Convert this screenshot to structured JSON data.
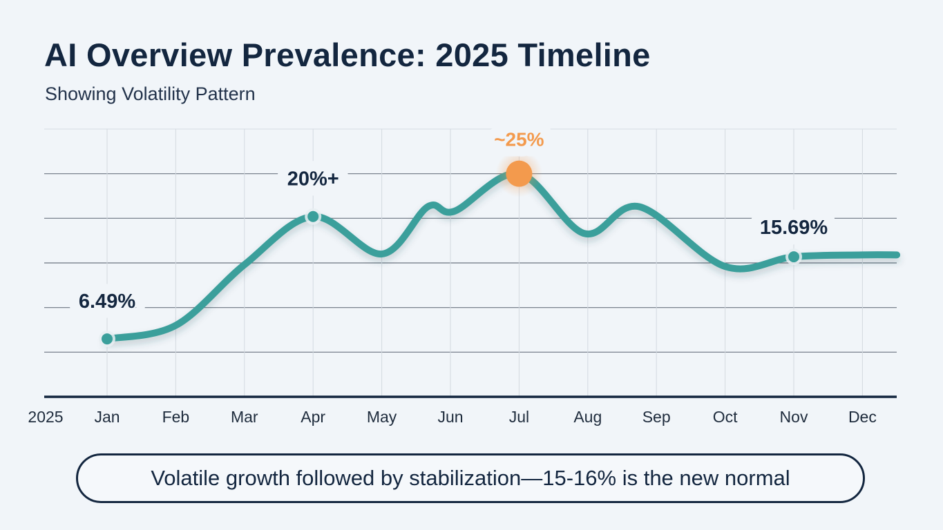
{
  "title": "AI Overview Prevalence: 2025 Timeline",
  "subtitle": "Showing Volatility Pattern",
  "callout": "Volatile growth followed by stabilization—15-16% is the new normal",
  "colors": {
    "line": "#3a9f9b",
    "peak": "#f39a4d",
    "text": "#13263f",
    "grid": "#6b7480"
  },
  "chart_data": {
    "type": "line",
    "title": "AI Overview Prevalence: 2025 Timeline",
    "subtitle": "Showing Volatility Pattern",
    "year_label": "2025",
    "categories": [
      "Jan",
      "Feb",
      "Mar",
      "Apr",
      "May",
      "Jun",
      "Jul",
      "Aug",
      "Sep",
      "Oct",
      "Nov",
      "Dec"
    ],
    "ylim": [
      0,
      30
    ],
    "y_unit": "%",
    "grid": true,
    "series": [
      {
        "x": [
          0,
          1,
          2,
          3,
          4,
          4.67,
          5.06,
          6,
          6.95,
          7.75,
          9,
          10,
          11,
          11.5
        ],
        "values": [
          6.49,
          8.0,
          14.8,
          20.2,
          16.0,
          21.3,
          20.8,
          25,
          18.3,
          21.3,
          14.6,
          15.69,
          15.9,
          15.9
        ]
      }
    ],
    "annotations": [
      {
        "month": "Jan",
        "value": 6.49,
        "label": "6.49%"
      },
      {
        "month": "Apr",
        "value": 20.2,
        "label": "20%+"
      },
      {
        "month": "Jul",
        "value": 25,
        "label": "~25%",
        "highlight": true
      },
      {
        "month": "Nov",
        "value": 15.69,
        "label": "15.69%"
      }
    ]
  }
}
